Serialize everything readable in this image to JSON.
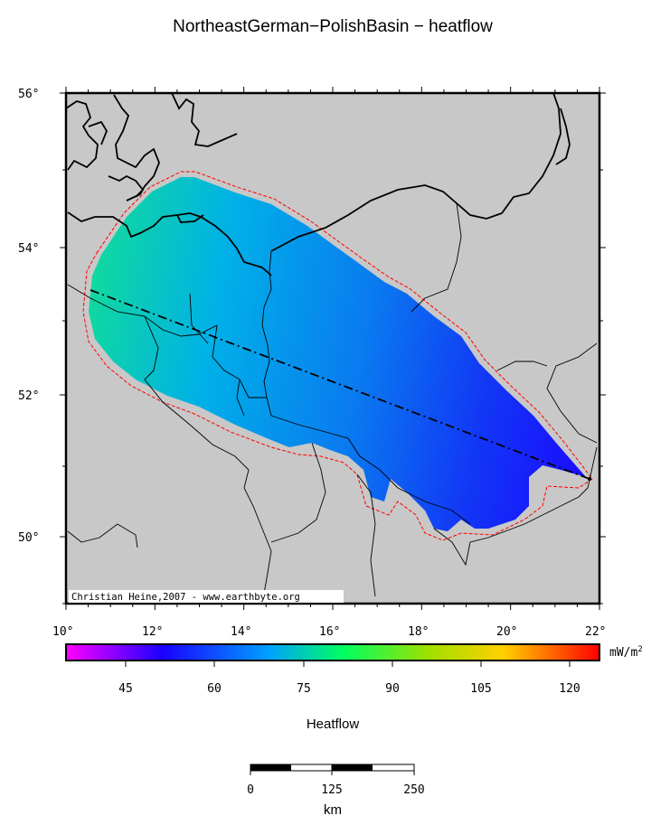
{
  "title": "NortheastGerman−PolishBasin − heatflow",
  "credit": "Christian Heine,2007 - www.earthbyte.org",
  "axes": {
    "lon_ticks": [
      "10°",
      "12°",
      "14°",
      "16°",
      "18°",
      "20°",
      "22°"
    ],
    "lat_ticks": [
      "56°",
      "54°",
      "52°",
      "50°"
    ]
  },
  "colorbar": {
    "unit": "mW/m",
    "unit_exp": "2",
    "tick_labels": [
      "45",
      "60",
      "75",
      "90",
      "105",
      "120"
    ],
    "colors": [
      "#ff00ff",
      "#1a00ff",
      "#00a0ff",
      "#00ff60",
      "#a0e000",
      "#ffd000",
      "#ff0000"
    ]
  },
  "legend_label": "Heatflow",
  "scalebar": {
    "tick_labels": [
      "0",
      "125",
      "250"
    ],
    "unit": "km"
  },
  "colors": {
    "land_mask": "#c8c8c8",
    "basin_outline": "#ff0000",
    "coastline": "#000000"
  }
}
